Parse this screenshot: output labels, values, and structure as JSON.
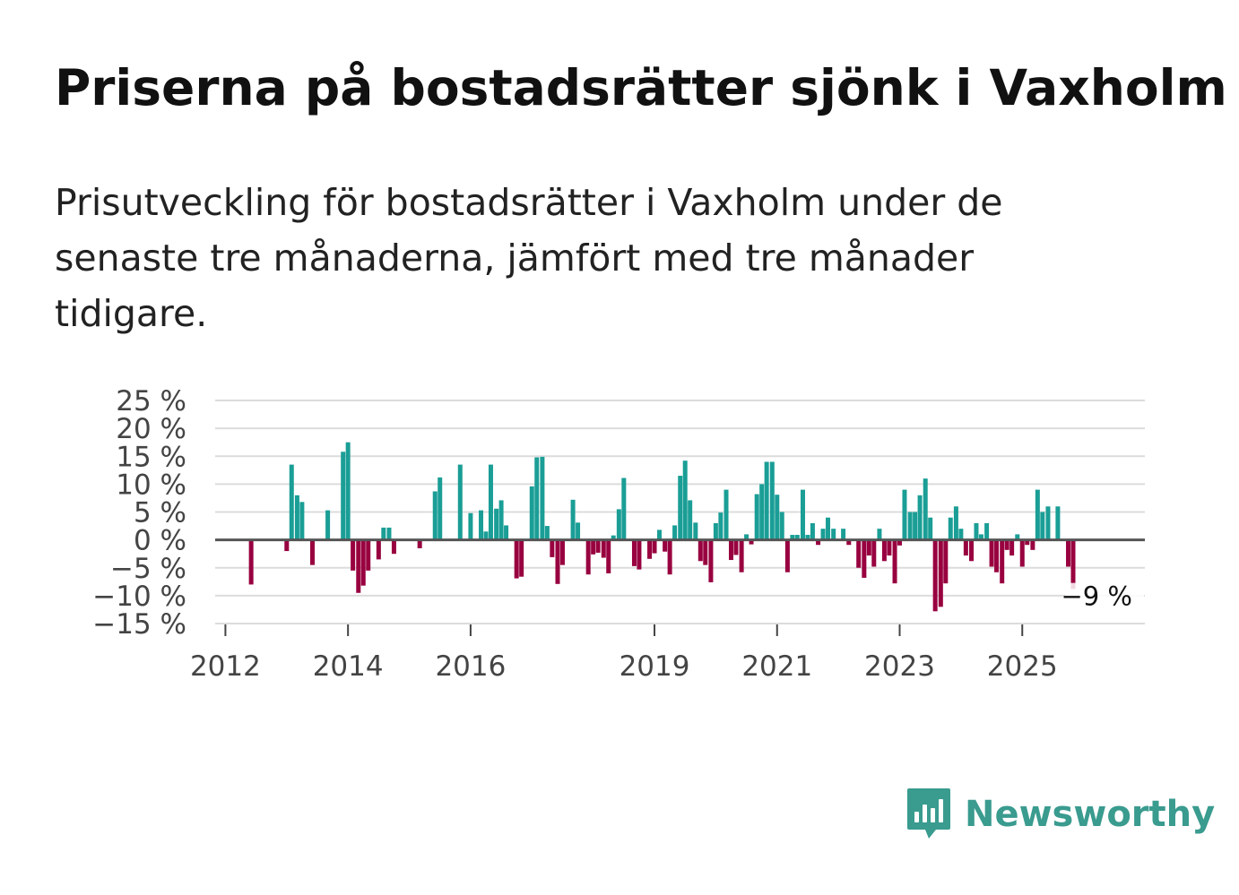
{
  "title": "Priserna på bostadsrätter sjönk i Vaxholm",
  "subtitle": "Prisutveckling för bostadsrätter i Vaxholm under de senaste tre månaderna, jämfört med tre månader tidigare.",
  "brand": {
    "name": "Newsworthy",
    "color": "#3a9b8f",
    "icon": "newsworthy-logo-icon"
  },
  "colors": {
    "positive": "#1a9e96",
    "negative": "#98003f",
    "grid": "#dcdcdc",
    "zero_line": "#555555",
    "axis_text": "#444444"
  },
  "chart_data": {
    "type": "bar",
    "title": "Priserna på bostadsrätter sjönk i Vaxholm",
    "xlabel": "",
    "ylabel": "",
    "ylim": [
      -15,
      25
    ],
    "y_ticks": [
      25,
      20,
      15,
      10,
      5,
      0,
      -5,
      -10,
      -15
    ],
    "y_tick_labels": [
      "25 %",
      "20 %",
      "15 %",
      "10 %",
      "5 %",
      "0 %",
      "−5 %",
      "−10 %",
      "−15 %"
    ],
    "x_range": [
      2011.833,
      2027.0
    ],
    "x_ticks": [
      2012,
      2014,
      2016,
      2019,
      2021,
      2023,
      2025
    ],
    "x_tick_labels": [
      "2012",
      "2014",
      "2016",
      "2019",
      "2021",
      "2023",
      "2025"
    ],
    "grid": true,
    "annotation": {
      "label": "−9 %",
      "value": -9
    },
    "series": [
      {
        "name": "Prisutveckling",
        "points": [
          {
            "x": 2012.42,
            "y": -8.0
          },
          {
            "x": 2013.0,
            "y": -2.0
          },
          {
            "x": 2013.08,
            "y": 13.5
          },
          {
            "x": 2013.17,
            "y": 8.0
          },
          {
            "x": 2013.25,
            "y": 6.8
          },
          {
            "x": 2013.42,
            "y": -4.5
          },
          {
            "x": 2013.67,
            "y": 5.3
          },
          {
            "x": 2013.92,
            "y": 15.8
          },
          {
            "x": 2014.0,
            "y": 17.5
          },
          {
            "x": 2014.08,
            "y": -5.5
          },
          {
            "x": 2014.17,
            "y": -9.5
          },
          {
            "x": 2014.25,
            "y": -8.2
          },
          {
            "x": 2014.33,
            "y": -5.5
          },
          {
            "x": 2014.5,
            "y": -3.5
          },
          {
            "x": 2014.58,
            "y": 2.2
          },
          {
            "x": 2014.67,
            "y": 2.2
          },
          {
            "x": 2014.75,
            "y": -2.5
          },
          {
            "x": 2015.17,
            "y": -1.5
          },
          {
            "x": 2015.42,
            "y": 8.7
          },
          {
            "x": 2015.5,
            "y": 11.2
          },
          {
            "x": 2015.83,
            "y": 13.5
          },
          {
            "x": 2016.0,
            "y": 4.8
          },
          {
            "x": 2016.17,
            "y": 5.3
          },
          {
            "x": 2016.25,
            "y": 1.5
          },
          {
            "x": 2016.33,
            "y": 13.5
          },
          {
            "x": 2016.42,
            "y": 5.6
          },
          {
            "x": 2016.5,
            "y": 7.1
          },
          {
            "x": 2016.58,
            "y": 2.6
          },
          {
            "x": 2016.75,
            "y": -6.9
          },
          {
            "x": 2016.83,
            "y": -6.6
          },
          {
            "x": 2017.0,
            "y": 9.6
          },
          {
            "x": 2017.08,
            "y": 14.8
          },
          {
            "x": 2017.17,
            "y": 14.9
          },
          {
            "x": 2017.25,
            "y": 2.5
          },
          {
            "x": 2017.33,
            "y": -3.1
          },
          {
            "x": 2017.42,
            "y": -7.9
          },
          {
            "x": 2017.5,
            "y": -4.5
          },
          {
            "x": 2017.67,
            "y": 7.2
          },
          {
            "x": 2017.75,
            "y": 3.1
          },
          {
            "x": 2017.92,
            "y": -6.2
          },
          {
            "x": 2018.0,
            "y": -2.6
          },
          {
            "x": 2018.08,
            "y": -2.3
          },
          {
            "x": 2018.17,
            "y": -3.2
          },
          {
            "x": 2018.25,
            "y": -6.0
          },
          {
            "x": 2018.33,
            "y": 0.8
          },
          {
            "x": 2018.42,
            "y": 5.5
          },
          {
            "x": 2018.5,
            "y": 11.1
          },
          {
            "x": 2018.67,
            "y": -4.7
          },
          {
            "x": 2018.75,
            "y": -5.3
          },
          {
            "x": 2018.92,
            "y": -3.4
          },
          {
            "x": 2019.0,
            "y": -2.4
          },
          {
            "x": 2019.08,
            "y": 1.8
          },
          {
            "x": 2019.17,
            "y": -2.1
          },
          {
            "x": 2019.25,
            "y": -6.2
          },
          {
            "x": 2019.33,
            "y": 2.6
          },
          {
            "x": 2019.42,
            "y": 11.5
          },
          {
            "x": 2019.5,
            "y": 14.2
          },
          {
            "x": 2019.58,
            "y": 7.1
          },
          {
            "x": 2019.67,
            "y": 3.1
          },
          {
            "x": 2019.75,
            "y": -3.8
          },
          {
            "x": 2019.83,
            "y": -4.5
          },
          {
            "x": 2019.92,
            "y": -7.6
          },
          {
            "x": 2020.0,
            "y": 3.0
          },
          {
            "x": 2020.08,
            "y": 4.9
          },
          {
            "x": 2020.17,
            "y": 9.0
          },
          {
            "x": 2020.25,
            "y": -3.6
          },
          {
            "x": 2020.33,
            "y": -2.7
          },
          {
            "x": 2020.42,
            "y": -5.8
          },
          {
            "x": 2020.5,
            "y": 1.0
          },
          {
            "x": 2020.58,
            "y": -0.8
          },
          {
            "x": 2020.67,
            "y": 8.2
          },
          {
            "x": 2020.75,
            "y": 10.0
          },
          {
            "x": 2020.83,
            "y": 14.0
          },
          {
            "x": 2020.92,
            "y": 14.0
          },
          {
            "x": 2021.0,
            "y": 8.1
          },
          {
            "x": 2021.08,
            "y": 5.0
          },
          {
            "x": 2021.17,
            "y": -5.8
          },
          {
            "x": 2021.25,
            "y": 0.9
          },
          {
            "x": 2021.33,
            "y": 0.9
          },
          {
            "x": 2021.42,
            "y": 9.0
          },
          {
            "x": 2021.5,
            "y": 0.9
          },
          {
            "x": 2021.58,
            "y": 3.0
          },
          {
            "x": 2021.67,
            "y": -0.9
          },
          {
            "x": 2021.75,
            "y": 2.0
          },
          {
            "x": 2021.83,
            "y": 4.0
          },
          {
            "x": 2021.92,
            "y": 2.0
          },
          {
            "x": 2022.08,
            "y": 2.0
          },
          {
            "x": 2022.17,
            "y": -0.9
          },
          {
            "x": 2022.33,
            "y": -5.0
          },
          {
            "x": 2022.42,
            "y": -6.8
          },
          {
            "x": 2022.5,
            "y": -2.8
          },
          {
            "x": 2022.58,
            "y": -4.8
          },
          {
            "x": 2022.67,
            "y": 2.0
          },
          {
            "x": 2022.75,
            "y": -3.8
          },
          {
            "x": 2022.83,
            "y": -2.8
          },
          {
            "x": 2022.92,
            "y": -7.8
          },
          {
            "x": 2023.0,
            "y": -1.0
          },
          {
            "x": 2023.08,
            "y": 9.0
          },
          {
            "x": 2023.17,
            "y": 5.0
          },
          {
            "x": 2023.25,
            "y": 5.0
          },
          {
            "x": 2023.33,
            "y": 8.0
          },
          {
            "x": 2023.42,
            "y": 11.0
          },
          {
            "x": 2023.5,
            "y": 4.0
          },
          {
            "x": 2023.58,
            "y": -12.8
          },
          {
            "x": 2023.67,
            "y": -12.0
          },
          {
            "x": 2023.75,
            "y": -7.8
          },
          {
            "x": 2023.83,
            "y": 4.0
          },
          {
            "x": 2023.92,
            "y": 6.0
          },
          {
            "x": 2024.0,
            "y": 2.0
          },
          {
            "x": 2024.08,
            "y": -2.8
          },
          {
            "x": 2024.17,
            "y": -3.8
          },
          {
            "x": 2024.25,
            "y": 3.0
          },
          {
            "x": 2024.33,
            "y": 1.0
          },
          {
            "x": 2024.42,
            "y": 3.0
          },
          {
            "x": 2024.5,
            "y": -4.8
          },
          {
            "x": 2024.58,
            "y": -5.8
          },
          {
            "x": 2024.67,
            "y": -7.8
          },
          {
            "x": 2024.75,
            "y": -1.8
          },
          {
            "x": 2024.83,
            "y": -2.8
          },
          {
            "x": 2024.92,
            "y": 1.0
          },
          {
            "x": 2025.0,
            "y": -4.8
          },
          {
            "x": 2025.08,
            "y": -0.9
          },
          {
            "x": 2025.17,
            "y": -1.8
          },
          {
            "x": 2025.25,
            "y": 9.0
          },
          {
            "x": 2025.33,
            "y": 5.0
          },
          {
            "x": 2025.42,
            "y": 6.0
          },
          {
            "x": 2025.58,
            "y": 6.0
          },
          {
            "x": 2025.75,
            "y": -4.8
          },
          {
            "x": 2025.83,
            "y": -8.8
          }
        ]
      }
    ]
  }
}
